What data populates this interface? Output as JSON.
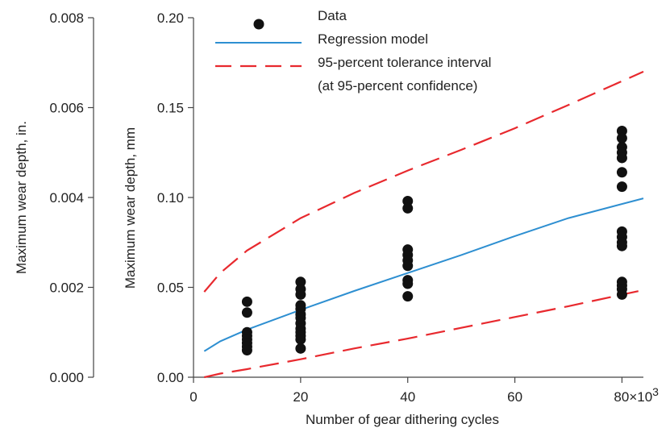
{
  "chart_data": {
    "type": "scatter",
    "xlabel": "Number of gear dithering cycles",
    "x_ticks": [
      "0",
      "20",
      "40",
      "60",
      "80×10"
    ],
    "x_tick_exponent": "3",
    "x_tick_values": [
      0,
      20,
      40,
      60,
      80
    ],
    "xlim": [
      0,
      84
    ],
    "ylabel": "Maximum wear depth, mm",
    "y_ticks": [
      "0.00",
      "0.05",
      "0.10",
      "0.15",
      "0.20"
    ],
    "y_tick_values": [
      0,
      0.05,
      0.1,
      0.15,
      0.2
    ],
    "ylim": [
      0,
      0.2
    ],
    "secondary_axis": {
      "label": "Maximum wear depth, in.",
      "ticks": [
        "0.000",
        "0.002",
        "0.004",
        "0.006",
        "0.008"
      ],
      "tick_values": [
        0,
        0.002,
        0.004,
        0.006,
        0.008
      ],
      "ylim": [
        0,
        0.008
      ]
    },
    "legend": {
      "placement": "top-left",
      "entries": [
        {
          "label": "Data",
          "marker": "dot"
        },
        {
          "label": "Regression model",
          "marker": "solid-line"
        },
        {
          "label": "95-percent tolerance interval",
          "label2": "(at 95-percent confidence)",
          "marker": "dashed-line"
        }
      ]
    },
    "colors": {
      "data": "#111111",
      "regression": "#2e8fd1",
      "tolerance": "#e8292e"
    },
    "series": [
      {
        "name": "Data",
        "kind": "points",
        "x": [
          10,
          10,
          10,
          10,
          10,
          10,
          10,
          10,
          20,
          20,
          20,
          20,
          20,
          20,
          20,
          20,
          20,
          20,
          20,
          20,
          20,
          40,
          40,
          40,
          40,
          40,
          40,
          40,
          40,
          40,
          80,
          80,
          80,
          80,
          80,
          80,
          80,
          80,
          80,
          80,
          80,
          80,
          80,
          80,
          80
        ],
        "y": [
          0.042,
          0.036,
          0.025,
          0.023,
          0.021,
          0.019,
          0.017,
          0.015,
          0.053,
          0.049,
          0.046,
          0.04,
          0.038,
          0.035,
          0.033,
          0.03,
          0.027,
          0.025,
          0.023,
          0.021,
          0.016,
          0.098,
          0.094,
          0.071,
          0.068,
          0.065,
          0.062,
          0.054,
          0.052,
          0.045,
          0.137,
          0.133,
          0.128,
          0.125,
          0.122,
          0.114,
          0.106,
          0.081,
          0.078,
          0.075,
          0.073,
          0.053,
          0.051,
          0.049,
          0.046
        ]
      },
      {
        "name": "Regression model",
        "kind": "line",
        "x": [
          2,
          5,
          10,
          20,
          30,
          40,
          50,
          60,
          70,
          84
        ],
        "y": [
          0.0145,
          0.02,
          0.0265,
          0.0375,
          0.048,
          0.058,
          0.068,
          0.0785,
          0.0885,
          0.0995
        ]
      },
      {
        "name": "95-percent tolerance interval (upper)",
        "kind": "dashed-line",
        "x": [
          2,
          5,
          10,
          20,
          30,
          40,
          50,
          60,
          70,
          84
        ],
        "y": [
          0.0475,
          0.058,
          0.0705,
          0.0885,
          0.1025,
          0.115,
          0.1265,
          0.1385,
          0.1515,
          0.17
        ]
      },
      {
        "name": "95-percent tolerance interval (lower)",
        "kind": "dashed-line",
        "x": [
          2,
          5,
          10,
          20,
          30,
          40,
          50,
          60,
          70,
          84
        ],
        "y": [
          0.0,
          0.002,
          0.0045,
          0.01,
          0.016,
          0.0215,
          0.0275,
          0.0335,
          0.0395,
          0.0485
        ]
      }
    ]
  }
}
